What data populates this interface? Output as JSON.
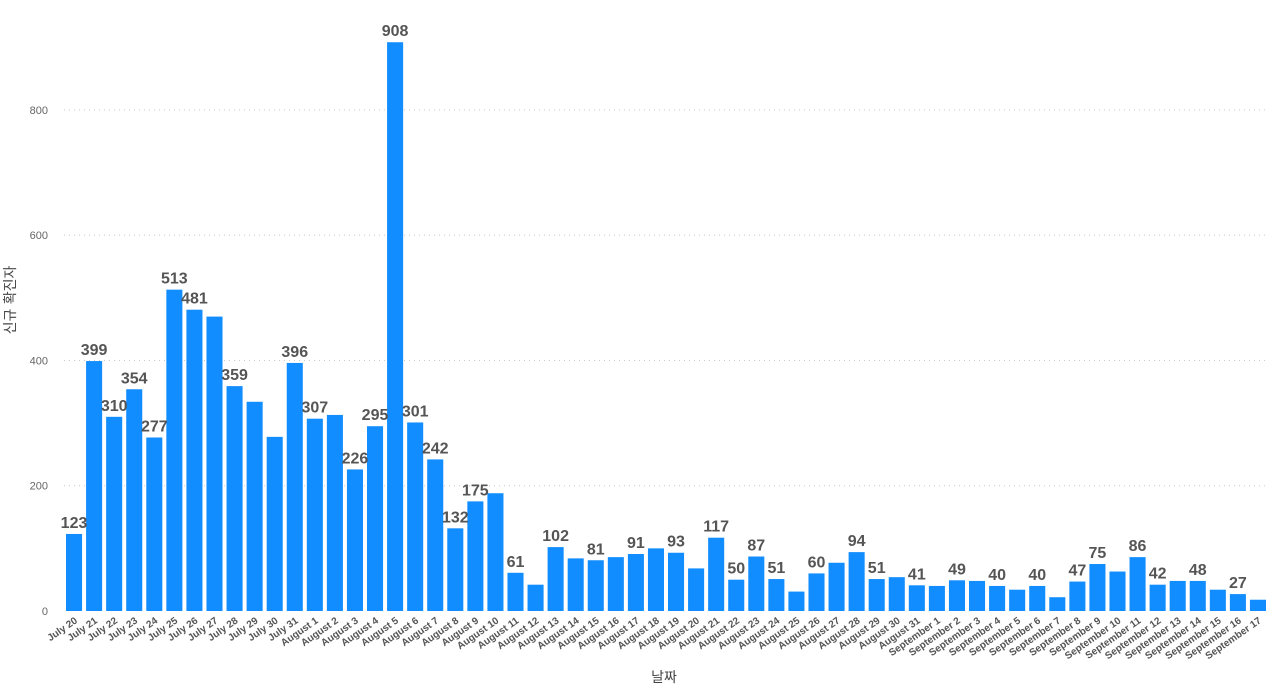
{
  "chart_data": {
    "type": "bar",
    "xlabel": "날짜",
    "ylabel": "신규 확진자",
    "ylim": [
      0,
      960
    ],
    "yticks": [
      0,
      200,
      400,
      600,
      800
    ],
    "grid": true,
    "bar_color": "#118dff",
    "categories": [
      "July 20",
      "July 21",
      "July 22",
      "July 23",
      "July 24",
      "July 25",
      "July 26",
      "July 27",
      "July 28",
      "July 29",
      "July 30",
      "July 31",
      "August 1",
      "August 2",
      "August 3",
      "August 4",
      "August 5",
      "August 6",
      "August 7",
      "August 8",
      "August 9",
      "August 10",
      "August 11",
      "August 12",
      "August 13",
      "August 14",
      "August 15",
      "August 16",
      "August 17",
      "August 18",
      "August 19",
      "August 20",
      "August 21",
      "August 22",
      "August 23",
      "August 24",
      "August 25",
      "August 26",
      "August 27",
      "August 28",
      "August 29",
      "August 30",
      "August 31",
      "September 1",
      "September 2",
      "September 3",
      "September 4",
      "September 5",
      "September 6",
      "September 7",
      "September 8",
      "September 9",
      "September 10",
      "September 11",
      "September 12",
      "September 13",
      "September 14",
      "September 15",
      "September 16",
      "September 17"
    ],
    "values": [
      123,
      399,
      310,
      354,
      277,
      513,
      481,
      470,
      359,
      334,
      278,
      396,
      307,
      313,
      226,
      295,
      908,
      301,
      242,
      132,
      175,
      188,
      61,
      42,
      102,
      84,
      81,
      86,
      91,
      100,
      93,
      68,
      117,
      50,
      87,
      51,
      31,
      60,
      77,
      94,
      51,
      54,
      41,
      40,
      49,
      48,
      40,
      34,
      40,
      22,
      47,
      75,
      63,
      86,
      42,
      48,
      48,
      34,
      27,
      18
    ],
    "labeled_indices": [
      0,
      1,
      2,
      3,
      4,
      5,
      6,
      8,
      11,
      12,
      14,
      15,
      16,
      17,
      18,
      19,
      20,
      22,
      24,
      26,
      28,
      30,
      32,
      33,
      34,
      35,
      37,
      39,
      40,
      42,
      44,
      46,
      48,
      50,
      51,
      53,
      54,
      56,
      58
    ]
  }
}
